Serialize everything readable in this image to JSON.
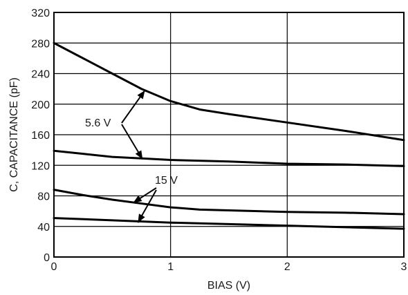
{
  "chart_data": {
    "type": "line",
    "title": "",
    "xlabel": "BIAS (V)",
    "ylabel": "C, CAPACITANCE (pF)",
    "xlim": [
      0,
      3
    ],
    "ylim": [
      0,
      320
    ],
    "xticks": [
      0,
      1,
      2,
      3
    ],
    "yticks": [
      0,
      40,
      80,
      120,
      160,
      200,
      240,
      280,
      320
    ],
    "grid": true,
    "series": [
      {
        "x": [
          0,
          0.25,
          0.5,
          0.75,
          1.0,
          1.25,
          1.5,
          2.0,
          2.5,
          3.0
        ],
        "y": [
          280,
          260,
          240,
          220,
          204,
          193,
          187,
          176,
          165,
          153
        ]
      },
      {
        "x": [
          0,
          0.25,
          0.5,
          0.75,
          1.0,
          1.5,
          2.0,
          2.5,
          3.0
        ],
        "y": [
          139,
          135,
          131,
          129,
          127,
          125,
          122,
          121,
          119
        ]
      },
      {
        "x": [
          0,
          0.25,
          0.5,
          0.75,
          1.0,
          1.25,
          1.5,
          2.0,
          2.5,
          3.0
        ],
        "y": [
          88,
          81,
          75,
          70,
          65,
          62,
          61,
          59,
          58,
          56
        ]
      },
      {
        "x": [
          0,
          0.5,
          1.0,
          1.5,
          2.0,
          2.5,
          3.0
        ],
        "y": [
          51,
          48,
          45,
          43,
          41,
          39,
          37
        ]
      }
    ],
    "annotations": [
      {
        "text": "5.6 V",
        "targets": [
          0
        ]
      },
      {
        "text": "5.6 V",
        "targets": [
          1
        ]
      },
      {
        "text": "15 V",
        "targets": [
          2
        ]
      },
      {
        "text": "15 V",
        "targets": [
          3
        ]
      }
    ],
    "annotation_labels": [
      "5.6 V",
      "15 V"
    ]
  }
}
